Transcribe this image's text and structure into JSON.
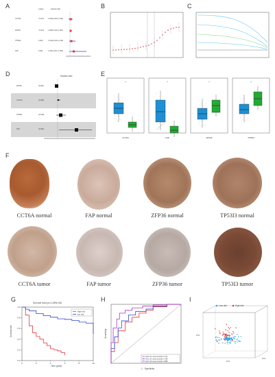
{
  "panels": {
    "a": "A",
    "b": "B",
    "c": "C",
    "d": "D",
    "e": "E",
    "f": "F",
    "g": "G",
    "h": "H",
    "i": "I"
  },
  "panel_a": {
    "headers": [
      "pvalue",
      "Hazard ratio"
    ],
    "rows": [
      {
        "gene": "CCT6A",
        "pvalue": "<0.001",
        "hr": "1.029(1.018-1.040)"
      },
      {
        "gene": "ZFP36",
        "pvalue": "<0.001",
        "hr": "1.005(1.003-1.007)"
      },
      {
        "gene": "TP53I3",
        "pvalue": "0.002",
        "hr": "1.010(1.004-1.016)"
      },
      {
        "gene": "FAP",
        "pvalue": "0.001",
        "hr": "1.031(1.012-1.050)"
      }
    ]
  },
  "panel_d": {
    "title": "Hazard ratio",
    "rows": [
      {
        "gene": "ZFP36",
        "pvalue": "(0.001)"
      },
      {
        "gene": "CCT6A",
        "pvalue": "(0.009)"
      },
      {
        "gene": "TP53I3",
        "pvalue": "(0.018)"
      },
      {
        "gene": "FAP",
        "pvalue": "(0.006)"
      }
    ]
  },
  "panel_e": {
    "genes": [
      "CCT6A",
      "FAP",
      "ZFP36",
      "TP53I3"
    ],
    "sig": "*",
    "colors": {
      "tumor": "#1e90d6",
      "normal": "#22aa33"
    }
  },
  "panel_f": {
    "normal_captions": [
      "CCT6A normal",
      "FAP normal",
      "ZFP36 normal",
      "TP53I3 normal"
    ],
    "tumor_captions": [
      "CCT6A tumor",
      "FAP tumor",
      "ZFP36 tumor",
      "TP53I3 tumor"
    ]
  },
  "panel_g": {
    "title": "Survival train (p=1.269e-06)",
    "legend": [
      "High risk",
      "low risk"
    ],
    "xlabel": "Time (year)",
    "ylabel": "Survival rate",
    "yticks": [
      "1.0",
      "0.8",
      "0.6",
      "0.4",
      "0.2",
      "0.0"
    ],
    "xticks": [
      "0",
      "2",
      "4",
      "6",
      "8",
      "10"
    ],
    "colors": {
      "high": "#e8333a",
      "low": "#2a44c8"
    }
  },
  "panel_h": {
    "xlabel": "1 - Specificity",
    "ylabel": "Sensitivity",
    "legend": [
      "AUC of 1 year survival: 0.771",
      "AUC of 3 year survival: 0.790",
      "AUC of 5 year survival: 0.856"
    ],
    "colors": [
      "#e8333a",
      "#2a44c8",
      "#b02cc8"
    ]
  },
  "panel_i": {
    "legend": [
      "Low risk",
      "High risk"
    ],
    "axes": [
      "PC1",
      "PC2",
      "PC3"
    ],
    "colors": {
      "low": "#2aa6e0",
      "high": "#e8333a"
    }
  },
  "chart_data": [
    {
      "type": "line",
      "panel": "G",
      "title": "Survival train (p=1.269e-06)",
      "xlabel": "Time (year)",
      "ylabel": "Survival rate",
      "xlim": [
        0,
        10
      ],
      "ylim": [
        0,
        1
      ],
      "series": [
        {
          "name": "High risk",
          "x": [
            0,
            0.5,
            1,
            1.5,
            2,
            2.5,
            3,
            3.5,
            4,
            4.5,
            5,
            5.5,
            6
          ],
          "values": [
            1.0,
            0.85,
            0.65,
            0.52,
            0.45,
            0.4,
            0.33,
            0.28,
            0.22,
            0.2,
            0.18,
            0.15,
            0.1
          ]
        },
        {
          "name": "low risk",
          "x": [
            0,
            0.5,
            1,
            2,
            3,
            4,
            5,
            6,
            7,
            8,
            9,
            10
          ],
          "values": [
            1.0,
            0.96,
            0.93,
            0.88,
            0.84,
            0.81,
            0.78,
            0.77,
            0.75,
            0.72,
            0.7,
            0.5
          ]
        }
      ]
    },
    {
      "type": "line",
      "panel": "H",
      "xlabel": "1 - Specificity",
      "ylabel": "Sensitivity",
      "xlim": [
        0,
        1
      ],
      "ylim": [
        0,
        1
      ],
      "series": [
        {
          "name": "AUC of 1 year survival: 0.771",
          "x": [
            0,
            0.05,
            0.1,
            0.2,
            0.3,
            0.4,
            0.5,
            0.6,
            0.8,
            1.0
          ],
          "values": [
            0,
            0.2,
            0.35,
            0.55,
            0.7,
            0.78,
            0.85,
            0.9,
            0.96,
            1.0
          ]
        },
        {
          "name": "AUC of 3 year survival: 0.790",
          "x": [
            0,
            0.05,
            0.1,
            0.15,
            0.25,
            0.35,
            0.5,
            0.6,
            0.8,
            1.0
          ],
          "values": [
            0,
            0.25,
            0.45,
            0.6,
            0.72,
            0.82,
            0.88,
            0.92,
            0.97,
            1.0
          ]
        },
        {
          "name": "AUC of 5 year survival: 0.856",
          "x": [
            0,
            0.03,
            0.08,
            0.12,
            0.2,
            0.3,
            0.45,
            0.6,
            0.8,
            1.0
          ],
          "values": [
            0,
            0.35,
            0.6,
            0.75,
            0.85,
            0.9,
            0.94,
            0.97,
            0.99,
            1.0
          ]
        }
      ]
    }
  ]
}
